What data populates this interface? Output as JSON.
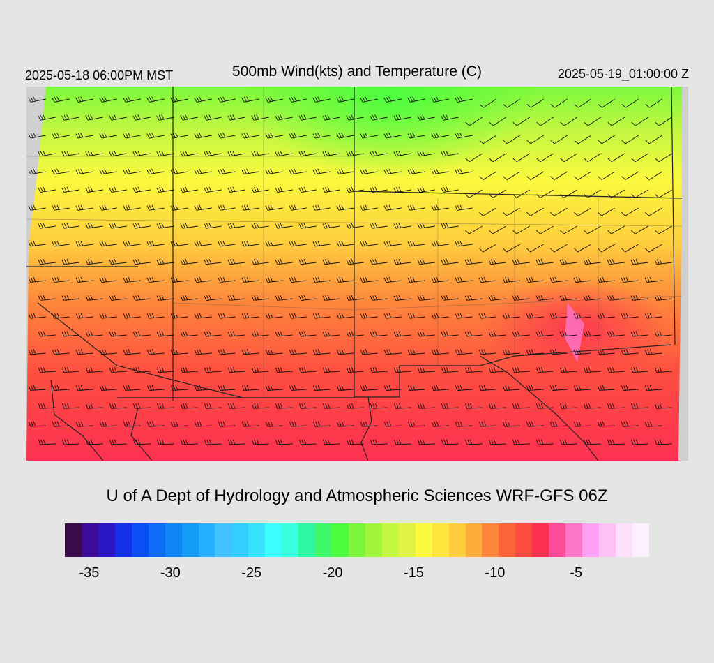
{
  "header": {
    "local_time": "2025-05-18 06:00PM MST",
    "title": "500mb Wind(kts) and Temperature (C)",
    "valid_time": "2025-05-19_01:00:00 Z"
  },
  "footer": {
    "credit": "U of A Dept of Hydrology and Atmospheric Sciences WRF-GFS 06Z"
  },
  "colorbar": {
    "min": -36,
    "max": -1,
    "colors": [
      "#3a0a4a",
      "#3d0b9a",
      "#2b16c8",
      "#1430e8",
      "#0a4ff6",
      "#0e6cf8",
      "#0e86f8",
      "#149cf6",
      "#27afff",
      "#42c1ff",
      "#33ceff",
      "#37e2ff",
      "#3dfeff",
      "#37ffe0",
      "#2ef7a3",
      "#3ff86a",
      "#4dfd3f",
      "#7bf83b",
      "#a2f53d",
      "#c4f741",
      "#e2f443",
      "#fcf83e",
      "#fde53e",
      "#fdcd3e",
      "#fdad3c",
      "#fd853b",
      "#fd6539",
      "#fd4b41",
      "#fd3152",
      "#fd4c9a",
      "#fd75c9",
      "#fda0f3",
      "#fdc2f3",
      "#fde1fa",
      "#fdf0fe"
    ],
    "tick_labels": [
      "-35",
      "-30",
      "-25",
      "-20",
      "-15",
      "-10",
      "-5"
    ],
    "tick_values": [
      -35,
      -30,
      -25,
      -20,
      -15,
      -10,
      -5
    ]
  },
  "map": {
    "region": "Southwestern United States and northwestern Mexico",
    "field": "500mb temperature (C) shaded with wind barbs",
    "temperature_range_c": [
      -20,
      -5
    ],
    "coldest_area": "north (Utah/Colorado) about -19 C",
    "warmest_area": "south (Sonora/Chihuahua) about -6 C",
    "no_data_color": "#d0d0d0"
  }
}
